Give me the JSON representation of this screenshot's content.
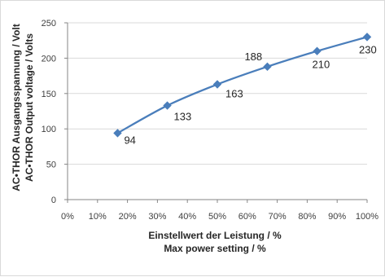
{
  "chart_data": {
    "type": "line",
    "x": [
      16.7,
      33.3,
      50,
      66.7,
      83.3,
      100
    ],
    "y": [
      94,
      133,
      163,
      188,
      210,
      230
    ],
    "data_labels": [
      "94",
      "133",
      "163",
      "188",
      "210",
      "230"
    ],
    "xlabel_line1": "Einstellwert der Leistung / %",
    "xlabel_line2": "Max power setting / %",
    "ylabel_line1": "AC•THOR Ausgangsspannung / Volt",
    "ylabel_line2": "AC•THOR Output voltage / Volts",
    "xlim": [
      0,
      100
    ],
    "ylim": [
      0,
      250
    ],
    "x_ticks": [
      "0%",
      "10%",
      "20%",
      "30%",
      "40%",
      "50%",
      "60%",
      "70%",
      "80%",
      "90%",
      "100%"
    ],
    "y_ticks": [
      "0",
      "50",
      "100",
      "150",
      "200",
      "250"
    ],
    "grid": "horizontal",
    "legend": "none",
    "series_color": "#4a7ebb",
    "grid_color": "#d9d9d9"
  }
}
